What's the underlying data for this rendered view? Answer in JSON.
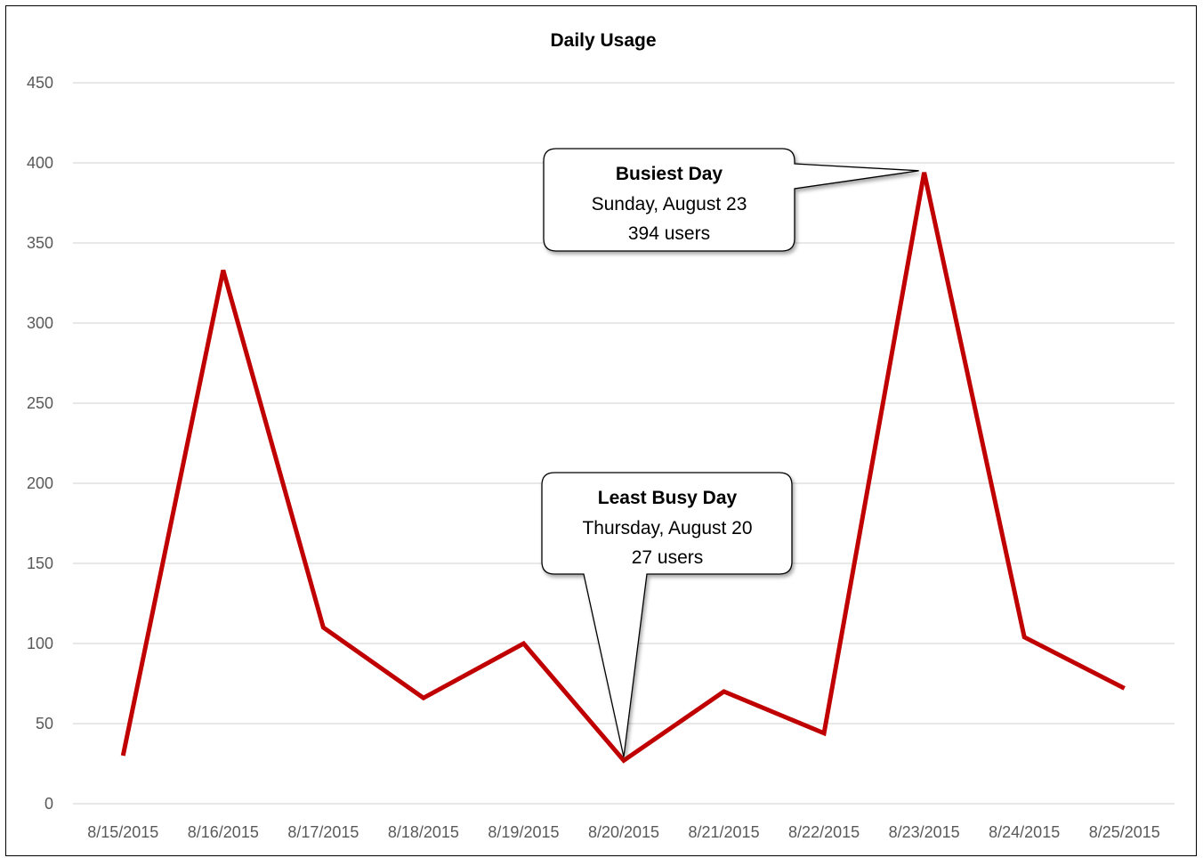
{
  "chart_data": {
    "type": "line",
    "title": "Daily Usage",
    "xlabel": "",
    "ylabel": "",
    "ylim": [
      0,
      450
    ],
    "yticks": [
      0,
      50,
      100,
      150,
      200,
      250,
      300,
      350,
      400,
      450
    ],
    "grid": true,
    "legend": "none",
    "categories": [
      "8/15/2015",
      "8/16/2015",
      "8/17/2015",
      "8/18/2015",
      "8/19/2015",
      "8/20/2015",
      "8/21/2015",
      "8/22/2015",
      "8/23/2015",
      "8/24/2015",
      "8/25/2015"
    ],
    "series": [
      {
        "color": "#c00000",
        "values": [
          30,
          333,
          110,
          66,
          100,
          27,
          70,
          44,
          394,
          104,
          72
        ]
      }
    ],
    "annotations": [
      {
        "category": "8/23/2015",
        "heading": "Busiest Day",
        "line1": "Sunday, August 23",
        "line2": "394 users"
      },
      {
        "category": "8/20/2015",
        "heading": "Least Busy Day",
        "line1": "Thursday, August 20",
        "line2": "27 users"
      }
    ]
  }
}
